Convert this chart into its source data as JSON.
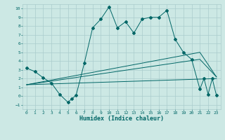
{
  "bg_color": "#cce8e4",
  "grid_color": "#aacccc",
  "line_color": "#006666",
  "xlabel": "Humidex (Indice chaleur)",
  "xlim": [
    -0.5,
    23.5
  ],
  "ylim": [
    -1.5,
    10.5
  ],
  "xticks": [
    0,
    1,
    2,
    3,
    4,
    5,
    6,
    7,
    8,
    9,
    10,
    11,
    12,
    13,
    14,
    15,
    16,
    17,
    18,
    19,
    20,
    21,
    22,
    23
  ],
  "yticks": [
    -1,
    0,
    1,
    2,
    3,
    4,
    5,
    6,
    7,
    8,
    9,
    10
  ],
  "main_line": [
    [
      0,
      3.2
    ],
    [
      1,
      2.8
    ],
    [
      2,
      2.1
    ],
    [
      3,
      1.5
    ],
    [
      4,
      0.2
    ],
    [
      5,
      -0.7
    ],
    [
      5.5,
      -0.3
    ],
    [
      6,
      0.1
    ],
    [
      7,
      3.8
    ],
    [
      8,
      7.8
    ],
    [
      9,
      8.8
    ],
    [
      10,
      10.2
    ],
    [
      11,
      7.8
    ],
    [
      12,
      8.5
    ],
    [
      13,
      7.2
    ],
    [
      14,
      8.8
    ],
    [
      15,
      9.0
    ],
    [
      16,
      9.0
    ],
    [
      17,
      9.8
    ],
    [
      18,
      6.5
    ],
    [
      19,
      5.0
    ],
    [
      20,
      4.2
    ],
    [
      21,
      0.8
    ],
    [
      21.5,
      2.0
    ],
    [
      22,
      0.2
    ],
    [
      22.5,
      2.0
    ],
    [
      23,
      0.1
    ]
  ],
  "line2": [
    [
      0,
      1.3
    ],
    [
      21,
      5.0
    ],
    [
      23,
      2.2
    ]
  ],
  "line3": [
    [
      0,
      1.3
    ],
    [
      21,
      4.2
    ],
    [
      23,
      2.2
    ]
  ],
  "line4": [
    [
      0,
      1.3
    ],
    [
      23,
      2.0
    ]
  ]
}
